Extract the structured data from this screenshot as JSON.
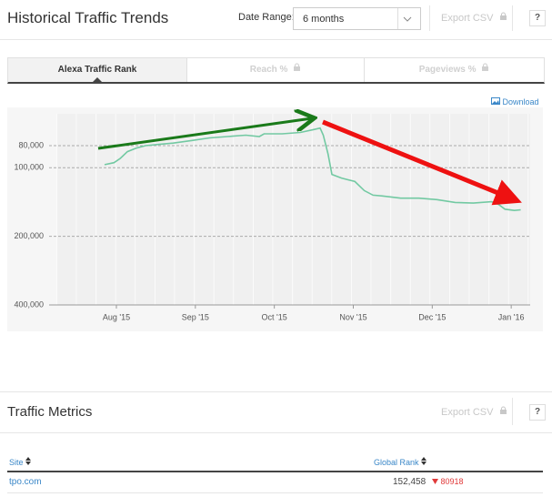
{
  "header": {
    "title": "Historical Traffic Trends",
    "date_range_label": "Date Range:",
    "date_range_value": "6 months",
    "export": "Export CSV",
    "help": "?"
  },
  "tabs": [
    "Alexa Traffic Rank",
    "Reach %",
    "Pageviews %"
  ],
  "download": "Download",
  "chart_data": {
    "type": "line",
    "color": "#72c9a2",
    "log_scale": true,
    "y_inverted": true,
    "grid": true,
    "x": [
      0.85,
      0.97,
      1.05,
      1.14,
      1.25,
      1.37,
      1.54,
      1.72,
      1.95,
      2.18,
      2.41,
      2.64,
      2.81,
      2.87,
      3.1,
      3.33,
      3.5,
      3.58,
      3.62,
      3.68,
      3.73,
      3.85,
      4.02,
      4.14,
      4.25,
      4.37,
      4.6,
      4.83,
      5.06,
      5.29,
      5.52,
      5.75,
      5.84,
      5.92,
      6.04,
      6.12
    ],
    "values": [
      97000,
      95000,
      91000,
      85000,
      82000,
      80000,
      79000,
      78000,
      76000,
      74000,
      73000,
      72000,
      73000,
      71000,
      71000,
      70000,
      68000,
      67000,
      72000,
      87000,
      107000,
      111000,
      115000,
      126000,
      132000,
      133000,
      136000,
      136000,
      138000,
      142000,
      143000,
      141000,
      145000,
      152000,
      154000,
      153000
    ],
    "xlim": [
      0.24,
      6.24
    ],
    "xticks": [
      {
        "value": 1,
        "label": "Aug '15"
      },
      {
        "value": 2,
        "label": "Sep '15"
      },
      {
        "value": 3,
        "label": "Oct '15"
      },
      {
        "value": 4,
        "label": "Nov '15"
      },
      {
        "value": 5,
        "label": "Dec '15"
      },
      {
        "value": 6,
        "label": "Jan '16"
      }
    ],
    "ylim": [
      58000,
      400000
    ],
    "yticks": [
      {
        "value": 80000,
        "label": "80,000"
      },
      {
        "value": 100000,
        "label": "100,000"
      },
      {
        "value": 200000,
        "label": "200,000"
      },
      {
        "value": 400000,
        "label": "400,000"
      }
    ]
  },
  "metrics": {
    "title": "Traffic Metrics",
    "export": "Export CSV",
    "help": "?",
    "columns": [
      "Site",
      "Global Rank"
    ],
    "rows": [
      {
        "site": "tpo.com",
        "global_rank": "152,458",
        "change": 80918
      }
    ]
  }
}
